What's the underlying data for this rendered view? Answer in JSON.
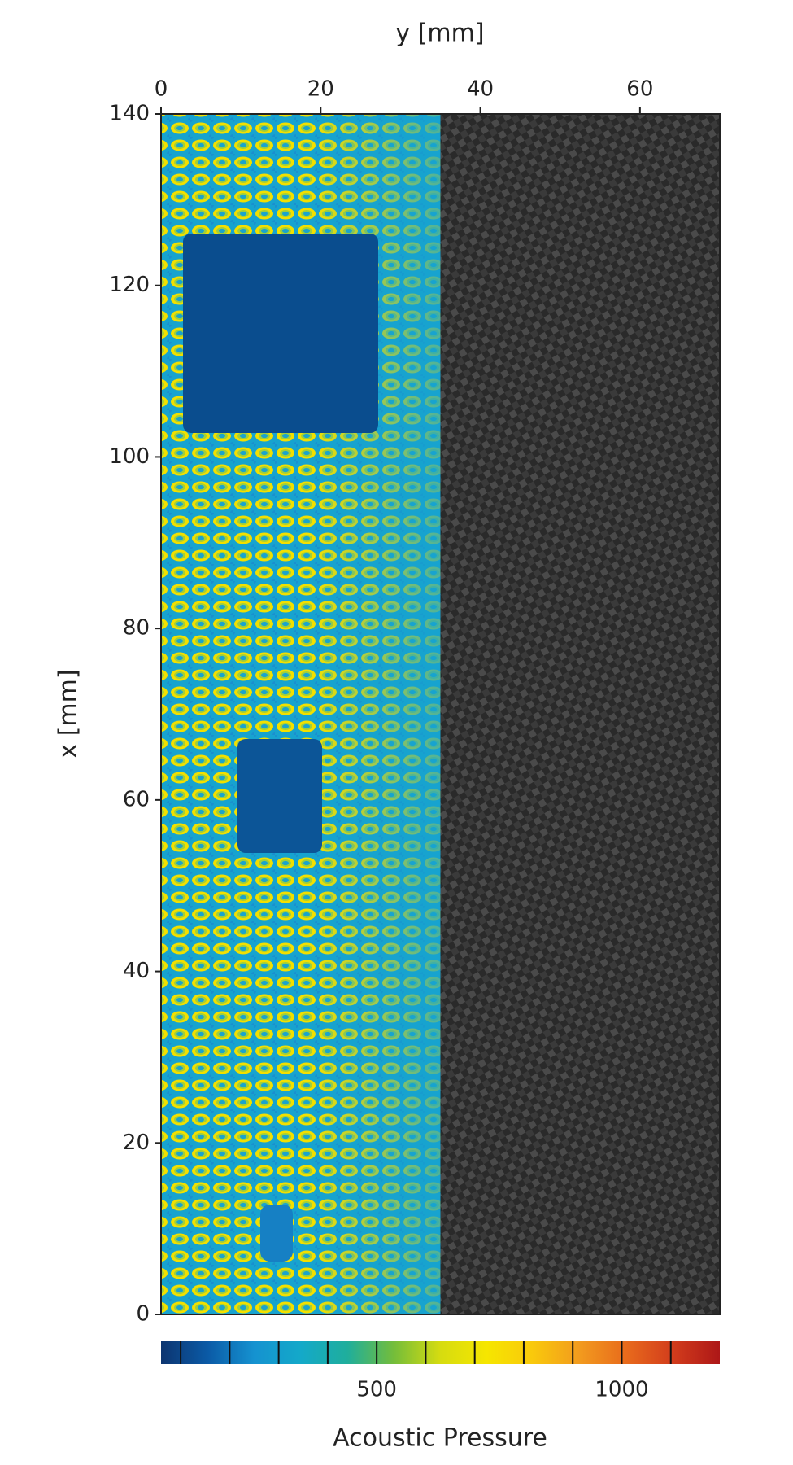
{
  "chart_data": {
    "type": "heatmap",
    "x_label": "y [mm]",
    "y_label": "x [mm]",
    "xlim": [
      0,
      70
    ],
    "xticks": [
      0,
      20,
      40,
      60
    ],
    "ylim": [
      0,
      140
    ],
    "yticks": [
      0,
      20,
      40,
      60,
      80,
      100,
      120,
      140
    ],
    "colorbar": {
      "label": "Acoustic Pressure",
      "clim": [
        60,
        1200
      ],
      "ticks": [
        500,
        1000
      ],
      "minor_ticks": [
        100,
        200,
        300,
        400,
        500,
        600,
        700,
        800,
        900,
        1000,
        1100
      ],
      "colormap": [
        "#0c3570",
        "#0b5aa6",
        "#1592d0",
        "#14a9c9",
        "#1fae9c",
        "#74bd3a",
        "#d6dc10",
        "#f6e600",
        "#f9c80c",
        "#f29a1e",
        "#e86a1c",
        "#d23c1c",
        "#ad1717"
      ]
    }
  }
}
